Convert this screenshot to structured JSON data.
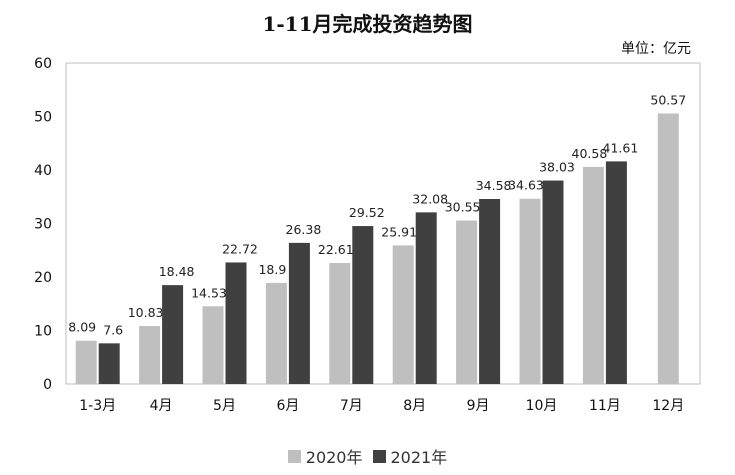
{
  "chart_data": {
    "type": "bar",
    "title": "1-11月完成投资趋势图",
    "unit": "单位：亿元",
    "categories": [
      "1-3月",
      "4月",
      "5月",
      "6月",
      "7月",
      "8月",
      "9月",
      "10月",
      "11月",
      "12月"
    ],
    "series": [
      {
        "name": "2020年",
        "color": "#bfbfbf",
        "values": [
          8.09,
          10.83,
          14.53,
          18.9,
          22.61,
          25.91,
          30.55,
          34.63,
          40.58,
          50.57
        ],
        "labels": [
          "8.09",
          "10.83",
          "14.53",
          "18.9",
          "22.61",
          "25.91",
          "30.55",
          "34.63",
          "40.58",
          "50.57"
        ]
      },
      {
        "name": "2021年",
        "color": "#404040",
        "values": [
          7.6,
          18.48,
          22.72,
          26.38,
          29.52,
          32.08,
          34.58,
          38.03,
          41.61,
          null
        ],
        "labels": [
          "7.6",
          "18.48",
          "22.72",
          "26.38",
          "29.52",
          "32.08",
          "34.58",
          "38.03",
          "41.61",
          null
        ]
      }
    ],
    "ylim": [
      0,
      60
    ],
    "yticks": [
      "0",
      "10",
      "20",
      "30",
      "40",
      "50",
      "60"
    ],
    "legend_position": "bottom",
    "grid": false
  }
}
